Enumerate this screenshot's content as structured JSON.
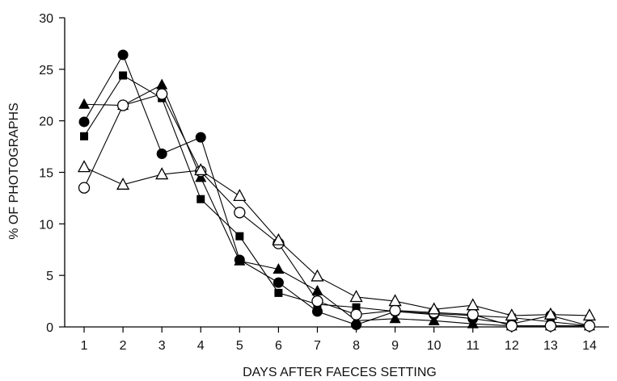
{
  "chart_data": {
    "type": "line",
    "title": "",
    "xlabel": "DAYS AFTER FAECES SETTING",
    "ylabel": "% OF PHOTOGRAPHS",
    "xlim": [
      0.5,
      14.5
    ],
    "ylim": [
      0,
      30
    ],
    "x": [
      1,
      2,
      3,
      4,
      5,
      6,
      7,
      8,
      9,
      10,
      11,
      12,
      13,
      14
    ],
    "xticks": [
      1,
      2,
      3,
      4,
      5,
      6,
      7,
      8,
      9,
      10,
      11,
      12,
      13,
      14
    ],
    "yticks": [
      0,
      5,
      10,
      15,
      20,
      25,
      30
    ],
    "grid": false,
    "legend": "none",
    "color": "#000000",
    "series": [
      {
        "marker": "filled-circle",
        "values": [
          19.9,
          26.4,
          16.8,
          18.4,
          6.5,
          4.3,
          1.5,
          0.2,
          1.5,
          1.2,
          0.8,
          0.3,
          1.1,
          0.1
        ]
      },
      {
        "marker": "filled-square",
        "values": [
          18.5,
          24.4,
          22.2,
          12.4,
          8.8,
          3.3,
          2.2,
          1.9,
          1.5,
          1.3,
          1.1,
          0.9,
          0.5,
          0.1
        ]
      },
      {
        "marker": "filled-triangle",
        "values": [
          21.6,
          21.5,
          23.5,
          14.5,
          6.4,
          5.6,
          3.5,
          0.6,
          0.8,
          0.6,
          0.3,
          0.1,
          0.1,
          0.1
        ]
      },
      {
        "marker": "open-circle",
        "values": [
          13.5,
          21.5,
          22.6,
          15.1,
          11.1,
          8.1,
          2.5,
          1.2,
          1.6,
          1.4,
          1.2,
          0.1,
          0.1,
          0.1
        ]
      },
      {
        "marker": "open-triangle",
        "values": [
          15.5,
          13.8,
          14.8,
          15.2,
          12.7,
          8.4,
          4.9,
          2.9,
          2.5,
          1.7,
          2.1,
          1.1,
          1.2,
          1.1
        ]
      }
    ]
  }
}
